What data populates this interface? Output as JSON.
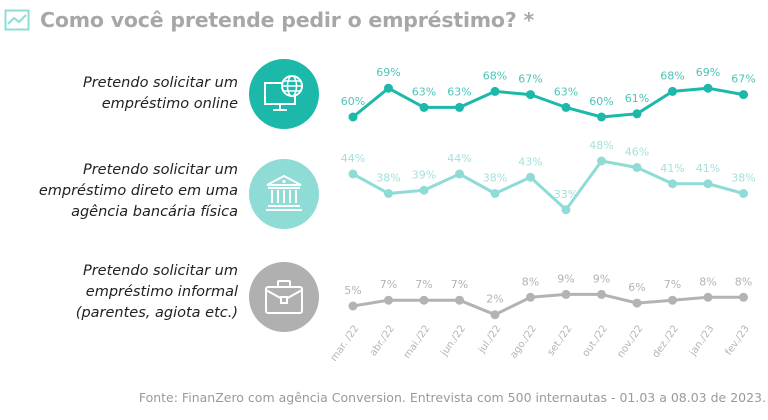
{
  "header": {
    "title": "Como você pretende pedir o empréstimo? *",
    "icon": "trend-chart-icon"
  },
  "footer": {
    "source": "Fonte: FinanZero com agência Conversion. Entrevista com 500 internautas - 01.03 a 08.03 de 2023."
  },
  "rows": [
    {
      "lines": [
        "Pretendo solicitar um",
        "empréstimo online"
      ],
      "icon": "computer-globe-icon",
      "color": "#1cb8a9"
    },
    {
      "lines": [
        "Pretendo solicitar um",
        "empréstimo direto em uma",
        "agência bancária física"
      ],
      "icon": "bank-building-icon",
      "color": "#8fdcd6"
    },
    {
      "lines": [
        "Pretendo solicitar um",
        "empréstimo informal",
        "(parentes, agiota etc.)"
      ],
      "icon": "briefcase-icon",
      "color": "#b0b0b0"
    }
  ],
  "chart_data": {
    "type": "line",
    "title": "Como você pretende pedir o empréstimo? *",
    "xlabel": "",
    "ylabel": "",
    "categories": [
      "mar. /22",
      "abr./22",
      "mai./22",
      "jun./22",
      "jul./22",
      "ago./22",
      "set./22",
      "out./22",
      "nov./22",
      "dez./22",
      "jan./23",
      "fev./23"
    ],
    "series": [
      {
        "name": "Pretendo solicitar um empréstimo online",
        "color": "#1cb8a9",
        "label_color": "#4cc4b8",
        "values": [
          60,
          69,
          63,
          63,
          68,
          67,
          63,
          60,
          61,
          68,
          69,
          67
        ],
        "labels": [
          "60%",
          "69%",
          "63%",
          "63%",
          "68%",
          "67%",
          "63%",
          "60%",
          "61%",
          "68%",
          "69%",
          "67%"
        ]
      },
      {
        "name": "Pretendo solicitar um empréstimo direto em uma agência bancária física",
        "color": "#8fdcd6",
        "label_color": "#a5e0db",
        "values": [
          44,
          38,
          39,
          44,
          38,
          43,
          33,
          48,
          46,
          41,
          41,
          38
        ],
        "labels": [
          "44%",
          "38%",
          "39%",
          "44%",
          "38%",
          "43%",
          "33%",
          "48%",
          "46%",
          "41%",
          "41%",
          "38%"
        ]
      },
      {
        "name": "Pretendo solicitar um empréstimo informal (parentes, agiota etc.)",
        "color": "#b3b3b3",
        "label_color": "#b3b3b3",
        "values": [
          5,
          7,
          7,
          7,
          2,
          8,
          9,
          9,
          6,
          7,
          8,
          8
        ],
        "labels": [
          "5%",
          "7%",
          "7%",
          "7%",
          "2%",
          "8%",
          "9%",
          "9%",
          "6%",
          "7%",
          "8%",
          "8%"
        ]
      }
    ],
    "grid": false,
    "legend": "left"
  }
}
